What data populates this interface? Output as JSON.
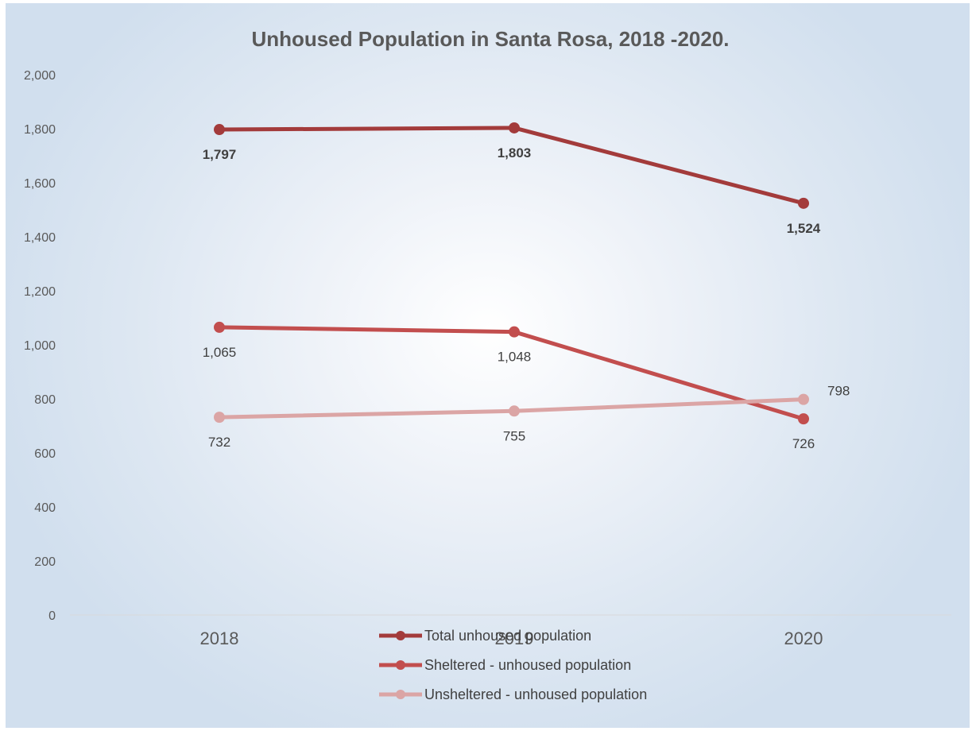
{
  "chart_data": {
    "type": "line",
    "title": "Unhoused Population in Santa Rosa, 2018 -2020.",
    "xlabel": "",
    "ylabel": "",
    "categories": [
      "2018",
      "2019",
      "2020"
    ],
    "ylim": [
      0,
      2000
    ],
    "yticks": [
      "0",
      "200",
      "400",
      "600",
      "800",
      "1,000",
      "1,200",
      "1,400",
      "1,600",
      "1,800",
      "2,000"
    ],
    "grid": false,
    "legend_position": "bottom",
    "series": [
      {
        "name": "Total unhoused population",
        "values": [
          1797,
          1803,
          1524
        ],
        "labels": [
          "1,797",
          "1,803",
          "1,524"
        ],
        "color": "#A33B3B",
        "label_bold": true
      },
      {
        "name": "Sheltered - unhoused population",
        "values": [
          1065,
          1048,
          726
        ],
        "labels": [
          "1,065",
          "1,048",
          "726"
        ],
        "color": "#C24E4E",
        "label_bold": false
      },
      {
        "name": "Unsheltered - unhoused population",
        "values": [
          732,
          755,
          798
        ],
        "labels": [
          "732",
          "755",
          "798"
        ],
        "color": "#DBA5A5",
        "label_bold": false
      }
    ]
  }
}
